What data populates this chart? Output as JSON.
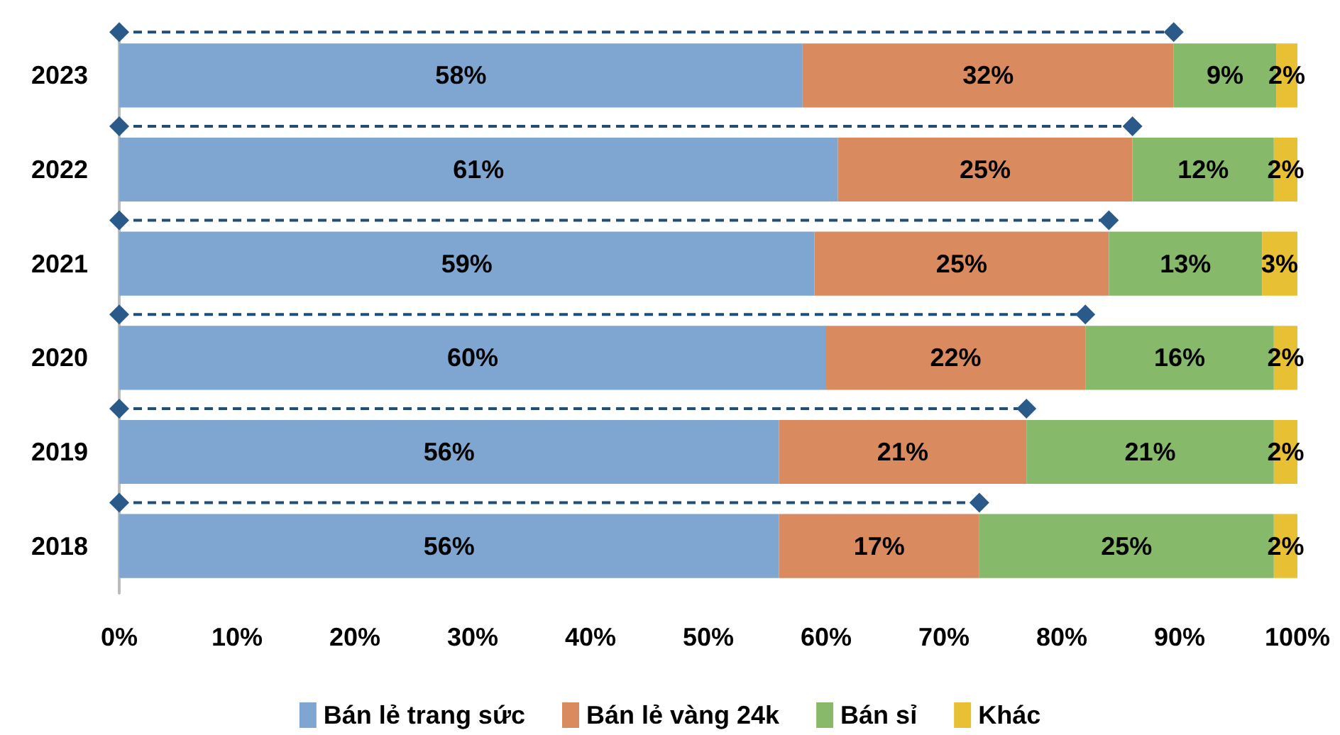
{
  "chart_data": {
    "type": "bar",
    "orientation": "horizontal",
    "stacked": true,
    "categories": [
      "2023",
      "2022",
      "2021",
      "2020",
      "2019",
      "2018"
    ],
    "series": [
      {
        "name": "Bán lẻ trang sức",
        "color": "#7fa6d0",
        "values": [
          58,
          61,
          59,
          60,
          56,
          56
        ],
        "value_labels": [
          "58%",
          "61%",
          "59%",
          "60%",
          "56%",
          "56%"
        ]
      },
      {
        "name": "Bán lẻ vàng 24k",
        "color": "#d98a5e",
        "values": [
          31.5,
          25,
          25,
          22,
          21,
          17
        ],
        "value_labels": [
          "32%",
          "25%",
          "25%",
          "22%",
          "21%",
          "17%"
        ]
      },
      {
        "name": "Bán sỉ",
        "color": "#86b96a",
        "values": [
          8.7,
          12,
          13,
          16,
          21,
          25
        ],
        "value_labels": [
          "9%",
          "12%",
          "13%",
          "16%",
          "21%",
          "25%"
        ]
      },
      {
        "name": "Khác",
        "color": "#e8c034",
        "values": [
          1.8,
          2,
          3,
          2,
          2,
          2
        ],
        "value_labels": [
          "2%",
          "2%",
          "3%",
          "2%",
          "2%",
          "2%"
        ]
      }
    ],
    "xlim": [
      0,
      100
    ],
    "xticks": [
      {
        "value": 0,
        "label": "0%"
      },
      {
        "value": 10,
        "label": "10%"
      },
      {
        "value": 20,
        "label": "20%"
      },
      {
        "value": 30,
        "label": "30%"
      },
      {
        "value": 40,
        "label": "40%"
      },
      {
        "value": 50,
        "label": "50%"
      },
      {
        "value": 60,
        "label": "60%"
      },
      {
        "value": 70,
        "label": "70%"
      },
      {
        "value": 80,
        "label": "80%"
      },
      {
        "value": 90,
        "label": "90%"
      },
      {
        "value": 100,
        "label": "100%"
      }
    ],
    "grid": false,
    "legend": "bottom"
  }
}
